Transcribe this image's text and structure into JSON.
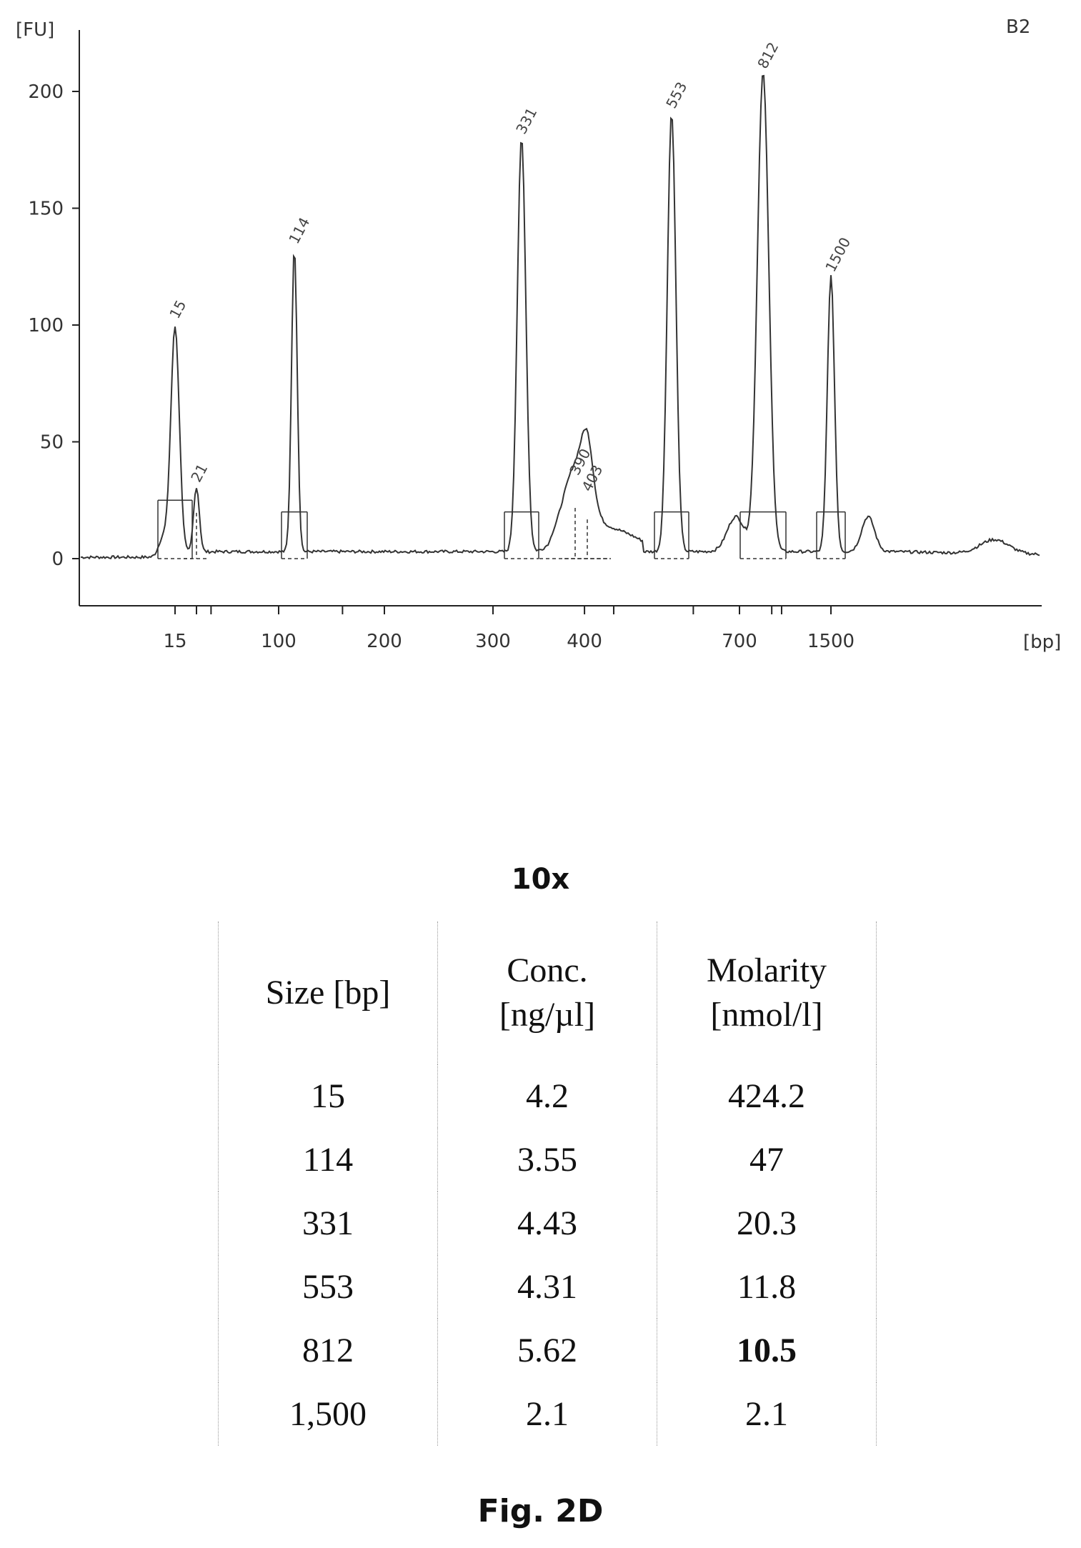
{
  "chart_data": {
    "type": "line",
    "title": "",
    "sample_label": "B2",
    "ylabel": "[FU]",
    "xlabel": "[bp]",
    "ylim": [
      -20,
      225
    ],
    "y_ticks": [
      0,
      50,
      100,
      150,
      200
    ],
    "x_ticks": [
      "15",
      "100",
      "200",
      "300",
      "400",
      "700",
      "1500"
    ],
    "grid": false,
    "peaks": [
      {
        "label": "15",
        "size_bp": 15,
        "height": 98
      },
      {
        "label": "21",
        "size_bp": 21,
        "height": 28
      },
      {
        "label": "114",
        "size_bp": 114,
        "height": 130
      },
      {
        "label": "331",
        "size_bp": 331,
        "height": 177
      },
      {
        "label": "390",
        "size_bp": 390,
        "height": 31
      },
      {
        "label": "403",
        "size_bp": 403,
        "height": 24
      },
      {
        "label": "553",
        "size_bp": 553,
        "height": 188
      },
      {
        "label": "812",
        "size_bp": 812,
        "height": 205
      },
      {
        "label": "1500",
        "size_bp": 1500,
        "height": 118
      }
    ]
  },
  "table": {
    "title": "10x",
    "headers": [
      {
        "line1": "Size [bp]",
        "line2": ""
      },
      {
        "line1": "Conc.",
        "line2": "[ng/µl]"
      },
      {
        "line1": "Molarity",
        "line2": "[nmol/l]"
      }
    ],
    "rows": [
      [
        "15",
        "4.2",
        "424.2"
      ],
      [
        "114",
        "3.55",
        "47"
      ],
      [
        "331",
        "4.43",
        "20.3"
      ],
      [
        "553",
        "4.31",
        "11.8"
      ],
      [
        "812",
        "5.62",
        "10.5"
      ],
      [
        "1,500",
        "2.1",
        "2.1"
      ]
    ],
    "bold_cell": [
      4,
      2
    ]
  },
  "caption": "Fig. 2D"
}
